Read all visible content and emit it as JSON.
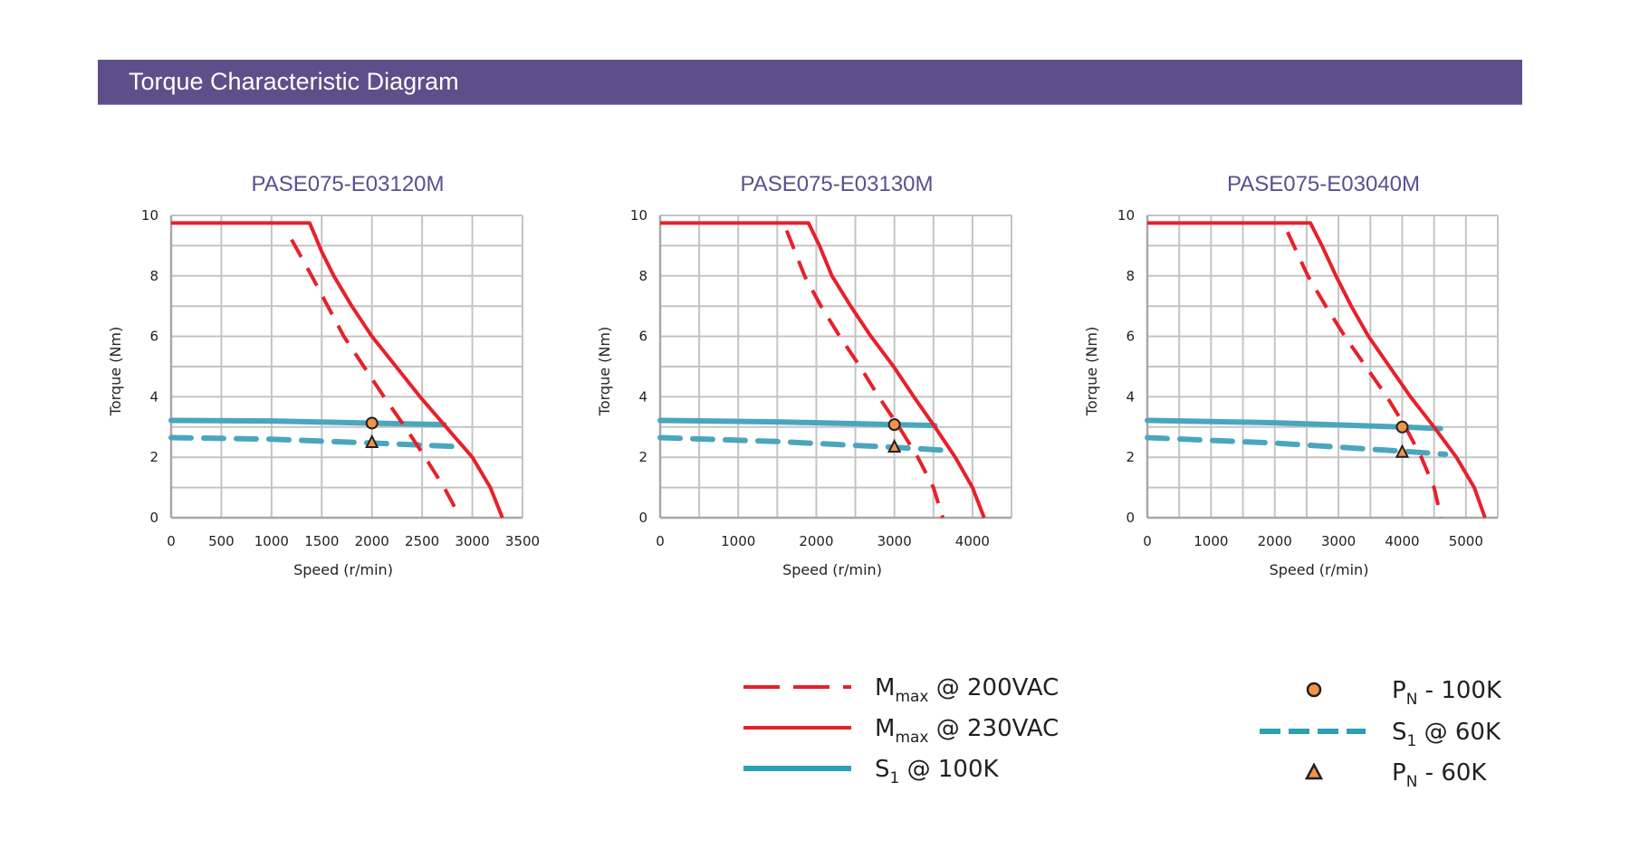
{
  "header": {
    "title": "Torque Characteristic Diagram"
  },
  "colors": {
    "header_bg": "#5e4f8a",
    "title": "#5b4f8f",
    "mmax": "#e8202a",
    "s1": "#4aa6bd",
    "marker_fill": "#f0944a",
    "marker_stroke": "#231f20",
    "grid": "#c4c4c4"
  },
  "legend": {
    "items": [
      {
        "id": "mmax-200vac",
        "main": "M",
        "sub": "max",
        "rest": " @ 200VAC",
        "kind": "dashed-red"
      },
      {
        "id": "mmax-230vac",
        "main": "M",
        "sub": "max",
        "rest": " @ 230VAC",
        "kind": "solid-red"
      },
      {
        "id": "s1-100k",
        "main": "S",
        "sub": "1",
        "rest": " @ 100K",
        "kind": "solid-teal"
      },
      {
        "id": "pn-100k",
        "main": "P",
        "sub": "N",
        "rest": " - 100K",
        "kind": "circle"
      },
      {
        "id": "s1-60k",
        "main": "S",
        "sub": "1",
        "rest": " @ 60K",
        "kind": "dashed-teal"
      },
      {
        "id": "pn-60k",
        "main": "P",
        "sub": "N",
        "rest": " - 60K",
        "kind": "triangle"
      }
    ]
  },
  "chart_data": [
    {
      "type": "line",
      "title": "PASE075-E03120M",
      "xlabel": "Speed (r/min)",
      "ylabel": "Torque (Nm)",
      "xlim": [
        0,
        3500
      ],
      "ylim": [
        0,
        10
      ],
      "xticks": [
        0,
        500,
        1000,
        1500,
        2000,
        2500,
        3000,
        3500
      ],
      "xgrid_step": 500,
      "yticks": [
        0,
        2,
        4,
        6,
        8,
        10
      ],
      "ygrid_step": 1,
      "grid": true,
      "series": [
        {
          "name": "Mmax @ 200VAC",
          "style": "dashed-red",
          "points": [
            [
              1200,
              9.2
            ],
            [
              1400,
              8.0
            ],
            [
              1560,
              7.0
            ],
            [
              1720,
              6.0
            ],
            [
              1920,
              5.0
            ],
            [
              2120,
              4.0
            ],
            [
              2330,
              3.0
            ],
            [
              2530,
              2.0
            ],
            [
              2720,
              1.0
            ],
            [
              2880,
              0
            ]
          ]
        },
        {
          "name": "Mmax @ 230VAC",
          "style": "solid-red",
          "points": [
            [
              0,
              9.75
            ],
            [
              1380,
              9.75
            ],
            [
              1500,
              8.8
            ],
            [
              1620,
              8.0
            ],
            [
              1800,
              7.0
            ],
            [
              2000,
              6.0
            ],
            [
              2240,
              5.0
            ],
            [
              2480,
              4.0
            ],
            [
              2740,
              3.0
            ],
            [
              3000,
              2.0
            ],
            [
              3180,
              1.0
            ],
            [
              3300,
              0
            ]
          ]
        },
        {
          "name": "S1 @ 100K",
          "style": "solid-teal",
          "points": [
            [
              0,
              3.22
            ],
            [
              1000,
              3.2
            ],
            [
              2000,
              3.13
            ],
            [
              2720,
              3.08
            ]
          ]
        },
        {
          "name": "S1 @ 60K",
          "style": "dashed-teal",
          "points": [
            [
              0,
              2.65
            ],
            [
              1000,
              2.6
            ],
            [
              2000,
              2.47
            ],
            [
              2880,
              2.35
            ]
          ]
        }
      ],
      "markers": [
        {
          "name": "PN - 100K",
          "shape": "circle",
          "x": 2000,
          "y": 3.13
        },
        {
          "name": "PN - 60K",
          "shape": "triangle",
          "x": 2000,
          "y": 2.5
        }
      ]
    },
    {
      "type": "line",
      "title": "PASE075-E03130M",
      "xlabel": "Speed (r/min)",
      "ylabel": "Torque (Nm)",
      "xlim": [
        0,
        4500
      ],
      "ylim": [
        0,
        10
      ],
      "xticks": [
        0,
        1000,
        2000,
        3000,
        4000
      ],
      "xgrid_step": 500,
      "yticks": [
        0,
        2,
        4,
        6,
        8,
        10
      ],
      "ygrid_step": 1,
      "grid": true,
      "series": [
        {
          "name": "Mmax @ 200VAC",
          "style": "dashed-red",
          "points": [
            [
              1620,
              9.5
            ],
            [
              1850,
              8.0
            ],
            [
              2060,
              7.0
            ],
            [
              2300,
              6.0
            ],
            [
              2560,
              5.0
            ],
            [
              2800,
              4.0
            ],
            [
              3060,
              3.0
            ],
            [
              3300,
              2.0
            ],
            [
              3500,
              1.0
            ],
            [
              3620,
              0
            ]
          ]
        },
        {
          "name": "Mmax @ 230VAC",
          "style": "solid-red",
          "points": [
            [
              0,
              9.75
            ],
            [
              1900,
              9.75
            ],
            [
              2040,
              9.0
            ],
            [
              2200,
              8.0
            ],
            [
              2440,
              7.0
            ],
            [
              2700,
              6.0
            ],
            [
              2990,
              5.0
            ],
            [
              3250,
              4.0
            ],
            [
              3520,
              3.0
            ],
            [
              3780,
              2.0
            ],
            [
              4000,
              1.0
            ],
            [
              4150,
              0
            ]
          ]
        },
        {
          "name": "S1 @ 100K",
          "style": "solid-teal",
          "points": [
            [
              0,
              3.22
            ],
            [
              1500,
              3.17
            ],
            [
              3000,
              3.08
            ],
            [
              3520,
              3.05
            ]
          ]
        },
        {
          "name": "S1 @ 60K",
          "style": "dashed-teal",
          "points": [
            [
              0,
              2.65
            ],
            [
              1500,
              2.52
            ],
            [
              3000,
              2.33
            ],
            [
              3730,
              2.22
            ]
          ]
        }
      ],
      "markers": [
        {
          "name": "PN - 100K",
          "shape": "circle",
          "x": 3000,
          "y": 3.08
        },
        {
          "name": "PN - 60K",
          "shape": "triangle",
          "x": 3000,
          "y": 2.35
        }
      ]
    },
    {
      "type": "line",
      "title": "PASE075-E03040M",
      "xlabel": "Speed (r/min)",
      "ylabel": "Torque (Nm)",
      "xlim": [
        0,
        5500
      ],
      "ylim": [
        0,
        10
      ],
      "xticks": [
        0,
        1000,
        2000,
        3000,
        4000,
        5000
      ],
      "xgrid_step": 500,
      "yticks": [
        0,
        2,
        4,
        6,
        8,
        10
      ],
      "ygrid_step": 1,
      "grid": true,
      "series": [
        {
          "name": "Mmax @ 200VAC",
          "style": "dashed-red",
          "points": [
            [
              2200,
              9.45
            ],
            [
              2520,
              8.0
            ],
            [
              2800,
              7.0
            ],
            [
              3100,
              6.0
            ],
            [
              3430,
              5.0
            ],
            [
              3760,
              4.0
            ],
            [
              4050,
              3.0
            ],
            [
              4300,
              2.0
            ],
            [
              4500,
              1.0
            ],
            [
              4610,
              0
            ]
          ]
        },
        {
          "name": "Mmax @ 230VAC",
          "style": "solid-red",
          "points": [
            [
              0,
              9.75
            ],
            [
              2560,
              9.75
            ],
            [
              2740,
              9.0
            ],
            [
              2960,
              8.0
            ],
            [
              3200,
              7.0
            ],
            [
              3470,
              6.0
            ],
            [
              3800,
              5.0
            ],
            [
              4130,
              4.0
            ],
            [
              4500,
              3.0
            ],
            [
              4850,
              2.0
            ],
            [
              5130,
              1.0
            ],
            [
              5300,
              0
            ]
          ]
        },
        {
          "name": "S1 @ 100K",
          "style": "solid-teal",
          "points": [
            [
              0,
              3.22
            ],
            [
              2000,
              3.14
            ],
            [
              4000,
              3.0
            ],
            [
              4600,
              2.95
            ]
          ]
        },
        {
          "name": "S1 @ 60K",
          "style": "dashed-teal",
          "points": [
            [
              0,
              2.65
            ],
            [
              2000,
              2.47
            ],
            [
              4000,
              2.2
            ],
            [
              4680,
              2.1
            ]
          ]
        }
      ],
      "markers": [
        {
          "name": "PN - 100K",
          "shape": "circle",
          "x": 4000,
          "y": 3.0
        },
        {
          "name": "PN - 60K",
          "shape": "triangle",
          "x": 4000,
          "y": 2.18
        }
      ]
    }
  ]
}
